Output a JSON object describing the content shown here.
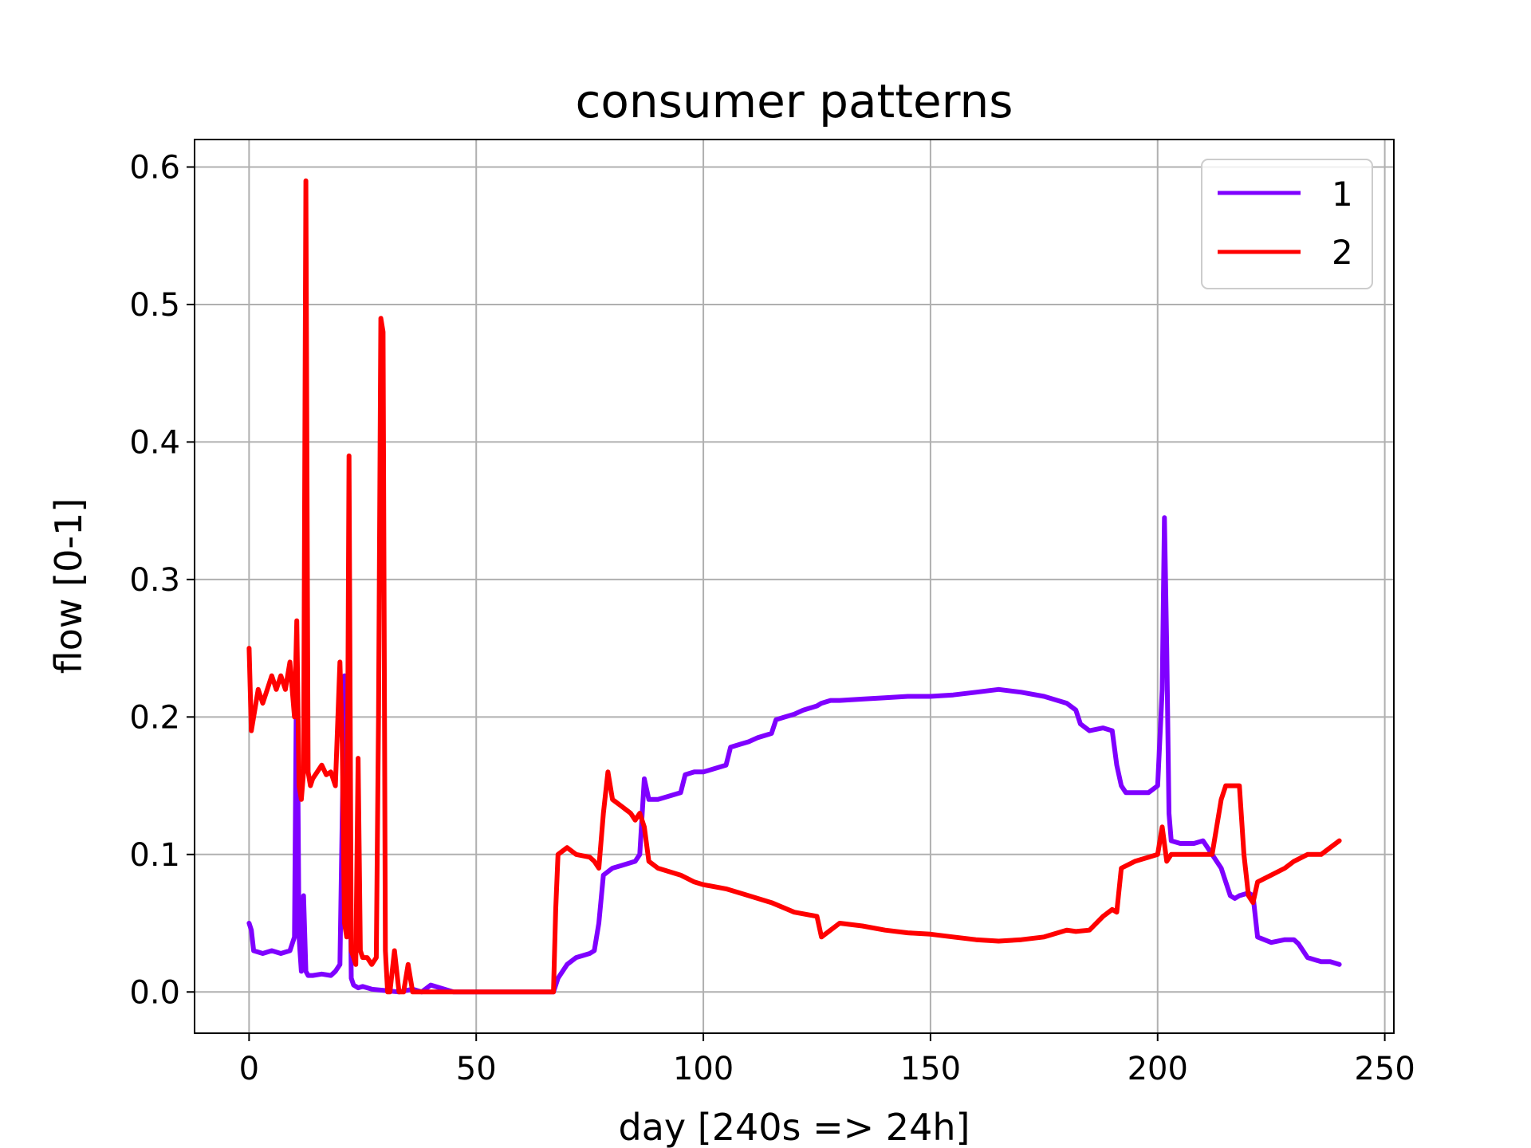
{
  "chart_data": {
    "type": "line",
    "title": "consumer patterns",
    "xlabel": "day [240s => 24h]",
    "ylabel": "flow [0-1]",
    "xlim": [
      -12,
      252
    ],
    "ylim": [
      -0.03,
      0.62
    ],
    "xticks": [
      0,
      50,
      100,
      150,
      200,
      250
    ],
    "yticks": [
      0.0,
      0.1,
      0.2,
      0.3,
      0.4,
      0.5,
      0.6
    ],
    "xtick_labels": [
      "0",
      "50",
      "100",
      "150",
      "200",
      "250"
    ],
    "ytick_labels": [
      "0.0",
      "0.1",
      "0.2",
      "0.3",
      "0.4",
      "0.5",
      "0.6"
    ],
    "grid": true,
    "legend_position": "top-right",
    "series": [
      {
        "name": "1",
        "color": "#7f00ff",
        "x": [
          0,
          0.5,
          1,
          3,
          5,
          7,
          9,
          10,
          10.5,
          11,
          11.5,
          12,
          12.5,
          13,
          14,
          16,
          18,
          19,
          20,
          21,
          21.5,
          22,
          22.5,
          23,
          24,
          25,
          27,
          30,
          33,
          36,
          38,
          40,
          45,
          50,
          55,
          60,
          65,
          67,
          68,
          70,
          72,
          75,
          76,
          77,
          78,
          80,
          82,
          85,
          86,
          87,
          88,
          90,
          92,
          95,
          96,
          98,
          100,
          102,
          105,
          106,
          108,
          110,
          112,
          115,
          116,
          118,
          120,
          122,
          125,
          126,
          128,
          130,
          135,
          140,
          145,
          150,
          155,
          160,
          165,
          170,
          175,
          180,
          182,
          183,
          185,
          188,
          190,
          191,
          192,
          193,
          195,
          198,
          200,
          201,
          201.5,
          202,
          202.5,
          203,
          205,
          208,
          210,
          211,
          212,
          214,
          215,
          216,
          217,
          218,
          220,
          221,
          222,
          225,
          228,
          229,
          230,
          231,
          233,
          236,
          238,
          240
        ],
        "y": [
          0.05,
          0.045,
          0.03,
          0.028,
          0.03,
          0.028,
          0.03,
          0.04,
          0.26,
          0.04,
          0.015,
          0.07,
          0.015,
          0.012,
          0.012,
          0.013,
          0.012,
          0.015,
          0.02,
          0.23,
          0.05,
          0.18,
          0.01,
          0.005,
          0.003,
          0.004,
          0.002,
          0.001,
          0.0,
          0.002,
          0.0,
          0.005,
          0.0,
          0.0,
          0.0,
          0.0,
          0.0,
          0.0,
          0.01,
          0.02,
          0.025,
          0.028,
          0.03,
          0.05,
          0.085,
          0.09,
          0.092,
          0.095,
          0.1,
          0.155,
          0.14,
          0.14,
          0.142,
          0.145,
          0.158,
          0.16,
          0.16,
          0.162,
          0.165,
          0.178,
          0.18,
          0.182,
          0.185,
          0.188,
          0.198,
          0.2,
          0.202,
          0.205,
          0.208,
          0.21,
          0.212,
          0.212,
          0.213,
          0.214,
          0.215,
          0.215,
          0.216,
          0.218,
          0.22,
          0.218,
          0.215,
          0.21,
          0.205,
          0.195,
          0.19,
          0.192,
          0.19,
          0.165,
          0.15,
          0.145,
          0.145,
          0.145,
          0.15,
          0.22,
          0.345,
          0.25,
          0.13,
          0.11,
          0.108,
          0.108,
          0.11,
          0.105,
          0.1,
          0.09,
          0.08,
          0.07,
          0.068,
          0.07,
          0.072,
          0.07,
          0.04,
          0.036,
          0.038,
          0.038,
          0.038,
          0.035,
          0.025,
          0.022,
          0.022,
          0.02
        ]
      },
      {
        "name": "2",
        "color": "#ff0000",
        "x": [
          0,
          0.5,
          1,
          2,
          3,
          4,
          5,
          6,
          7,
          8,
          9,
          10,
          10.5,
          11,
          11.5,
          12,
          12.5,
          13,
          13.5,
          14,
          15,
          16,
          17,
          18,
          19,
          20,
          20.5,
          21,
          21.5,
          22,
          22.5,
          23,
          23.5,
          24,
          24.5,
          25,
          26,
          27,
          28,
          28.5,
          29,
          29.5,
          30,
          30.5,
          31,
          32,
          33,
          34,
          35,
          36,
          40,
          45,
          50,
          55,
          60,
          65,
          66,
          67,
          67.5,
          68,
          70,
          72,
          75,
          76,
          77,
          78,
          79,
          80,
          82,
          84,
          85,
          86,
          87,
          88,
          90,
          92,
          95,
          98,
          100,
          105,
          110,
          115,
          120,
          125,
          126,
          130,
          135,
          140,
          145,
          150,
          155,
          160,
          165,
          170,
          175,
          180,
          182,
          185,
          188,
          190,
          191,
          192,
          195,
          198,
          200,
          201,
          202,
          203,
          205,
          208,
          210,
          212,
          213,
          214,
          215,
          216,
          218,
          219,
          220,
          221,
          222,
          225,
          228,
          230,
          233,
          236,
          238,
          240
        ],
        "y": [
          0.25,
          0.19,
          0.2,
          0.22,
          0.21,
          0.22,
          0.23,
          0.22,
          0.23,
          0.22,
          0.24,
          0.2,
          0.27,
          0.15,
          0.14,
          0.16,
          0.59,
          0.16,
          0.15,
          0.155,
          0.16,
          0.165,
          0.158,
          0.16,
          0.15,
          0.24,
          0.18,
          0.05,
          0.04,
          0.39,
          0.03,
          0.025,
          0.02,
          0.17,
          0.03,
          0.025,
          0.025,
          0.02,
          0.025,
          0.2,
          0.49,
          0.48,
          0.03,
          0.0,
          0.0,
          0.03,
          0.0,
          0.0,
          0.02,
          0.0,
          0.0,
          0.0,
          0.0,
          0.0,
          0.0,
          0.0,
          0.0,
          0.0,
          0.06,
          0.1,
          0.105,
          0.1,
          0.098,
          0.095,
          0.09,
          0.13,
          0.16,
          0.14,
          0.135,
          0.13,
          0.125,
          0.13,
          0.12,
          0.095,
          0.09,
          0.088,
          0.085,
          0.08,
          0.078,
          0.075,
          0.07,
          0.065,
          0.058,
          0.055,
          0.04,
          0.05,
          0.048,
          0.045,
          0.043,
          0.042,
          0.04,
          0.038,
          0.037,
          0.038,
          0.04,
          0.045,
          0.044,
          0.045,
          0.055,
          0.06,
          0.058,
          0.09,
          0.095,
          0.098,
          0.1,
          0.12,
          0.095,
          0.1,
          0.1,
          0.1,
          0.1,
          0.1,
          0.12,
          0.14,
          0.15,
          0.15,
          0.15,
          0.1,
          0.07,
          0.065,
          0.08,
          0.085,
          0.09,
          0.095,
          0.1,
          0.1,
          0.105,
          0.11
        ]
      }
    ]
  }
}
